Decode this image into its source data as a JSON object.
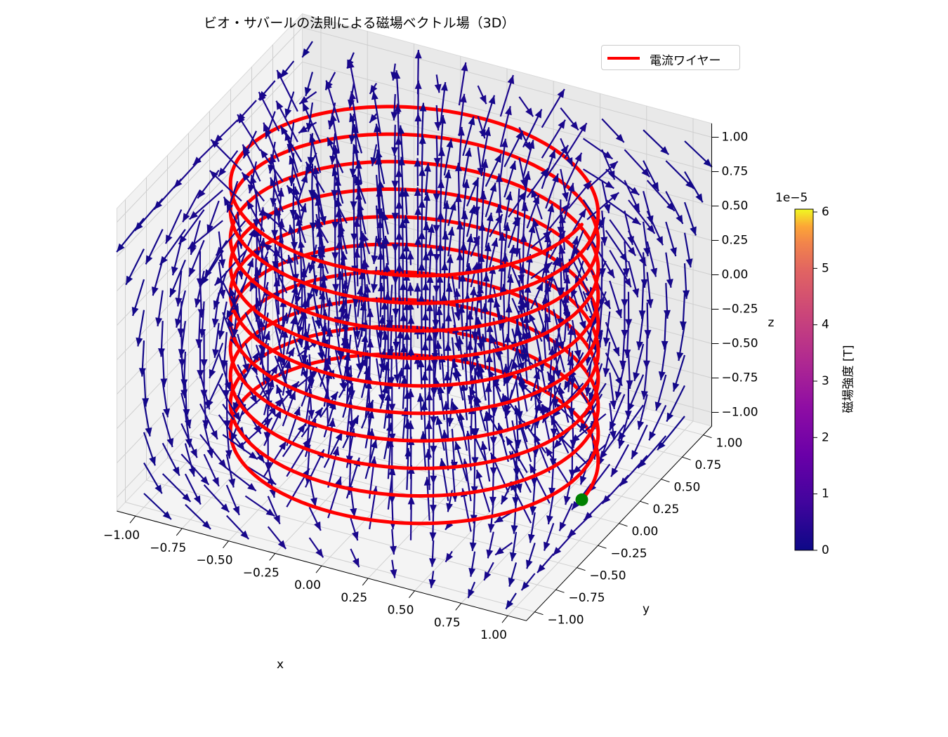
{
  "title": "ビオ・サバールの法則による磁場ベクトル場（3D）",
  "legend": {
    "label": "電流ワイヤー",
    "color": "#ff0000"
  },
  "colorbar": {
    "label": "磁場強度 [T]",
    "exponent": "1e−5",
    "ticks": [
      "0",
      "1",
      "2",
      "3",
      "4",
      "5",
      "6"
    ],
    "colormap": "plasma",
    "range": [
      0,
      6.05
    ]
  },
  "axes": {
    "x": {
      "label": "x",
      "ticks": [
        "−1.00",
        "−0.75",
        "−0.50",
        "−0.25",
        "0.00",
        "0.25",
        "0.50",
        "0.75",
        "1.00"
      ]
    },
    "y": {
      "label": "y",
      "ticks": [
        "−1.00",
        "−0.75",
        "−0.50",
        "−0.25",
        "0.00",
        "0.25",
        "0.50",
        "0.75",
        "1.00"
      ]
    },
    "z": {
      "label": "z",
      "ticks": [
        "−1.00",
        "−0.75",
        "−0.50",
        "−0.25",
        "0.00",
        "0.25",
        "0.50",
        "0.75",
        "1.00"
      ]
    }
  },
  "chart_data": {
    "type": "quiver3d",
    "title": "ビオ・サバールの法則による磁場ベクトル場（3D）",
    "xlabel": "x",
    "ylabel": "y",
    "zlabel": "z",
    "xlim": [
      -1.1,
      1.1
    ],
    "ylim": [
      -1.1,
      1.1
    ],
    "zlim": [
      -1.1,
      1.1
    ],
    "tick_values": [
      -1.0,
      -0.75,
      -0.5,
      -0.25,
      0.0,
      0.25,
      0.5,
      0.75,
      1.0
    ],
    "grid": true,
    "wire": {
      "shape": "helix",
      "radius": 0.9,
      "z_range": [
        -1.0,
        1.0
      ],
      "turns": 10,
      "color": "#ff0000",
      "label": "電流ワイヤー"
    },
    "vector_field": {
      "grid_range": [
        -1.0,
        1.0
      ],
      "grid_points_per_axis": 10,
      "arrow_color_by": "magnitude",
      "colormap": "plasma",
      "magnitude_range": [
        0,
        6.05e-05
      ],
      "magnitude_unit": "T",
      "typical_color": "#2a0593"
    },
    "marker": {
      "color": "#008000",
      "point": [
        0.9,
        0.0,
        -1.0
      ]
    },
    "legend_position": "upper right"
  }
}
